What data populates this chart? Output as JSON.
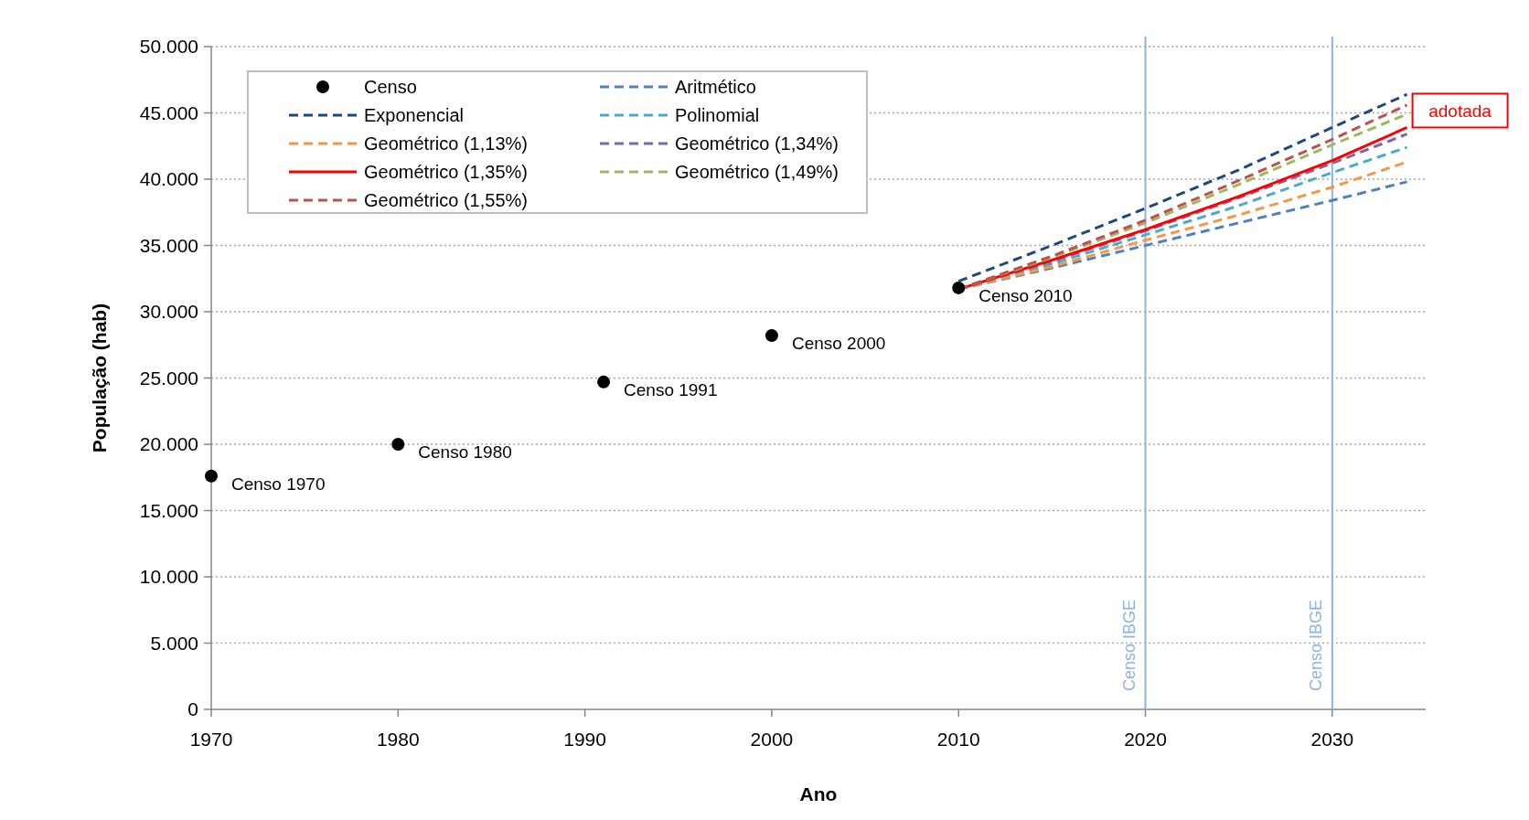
{
  "chart_data": {
    "type": "line",
    "xlabel": "Ano",
    "ylabel": "População (hab)",
    "xlim": [
      1970,
      2035
    ],
    "xticks": [
      1970,
      1980,
      1990,
      2000,
      2010,
      2020,
      2030
    ],
    "ylim": [
      0,
      50000
    ],
    "yticks": [
      {
        "value": 0,
        "label": "0"
      },
      {
        "value": 5000,
        "label": "5.000"
      },
      {
        "value": 10000,
        "label": "10.000"
      },
      {
        "value": 15000,
        "label": "15.000"
      },
      {
        "value": 20000,
        "label": "20.000"
      },
      {
        "value": 25000,
        "label": "25.000"
      },
      {
        "value": 30000,
        "label": "30.000"
      },
      {
        "value": 35000,
        "label": "35.000"
      },
      {
        "value": 40000,
        "label": "40.000"
      },
      {
        "value": 45000,
        "label": "45.000"
      },
      {
        "value": 50000,
        "label": "50.000"
      }
    ],
    "grid": "y",
    "legend": "top left",
    "series": [
      {
        "name": "Censo",
        "type": "scatter",
        "marker": "circle",
        "color": "#000000",
        "x": [
          1970,
          1980,
          1991,
          2000,
          2010
        ],
        "values": [
          17600,
          20000,
          24700,
          28200,
          31800
        ]
      },
      {
        "name": "Aritmético",
        "type": "line",
        "line_style": "dashed",
        "marker": "none",
        "color": "#4f81bd",
        "x": [
          2010,
          2015,
          2020,
          2025,
          2030,
          2034
        ],
        "values": [
          31700,
          33300,
          35000,
          36700,
          38400,
          39800
        ]
      },
      {
        "name": "Exponencial",
        "type": "line",
        "line_style": "dashed",
        "marker": "none",
        "color": "#1f497d",
        "x": [
          2010,
          2015,
          2020,
          2025,
          2030,
          2034
        ],
        "values": [
          32300,
          35000,
          37800,
          40700,
          43900,
          46400
        ]
      },
      {
        "name": "Polinomial",
        "type": "line",
        "line_style": "dashed",
        "marker": "none",
        "color": "#4bacc6",
        "x": [
          2010,
          2015,
          2020,
          2025,
          2030,
          2034
        ],
        "values": [
          31700,
          33600,
          35800,
          38000,
          40500,
          42400
        ]
      },
      {
        "name": "Geométrico (1,13%)",
        "type": "line",
        "line_style": "dashed",
        "marker": "none",
        "color": "#f79646",
        "x": [
          2010,
          2015,
          2020,
          2025,
          2030,
          2034
        ],
        "values": [
          31700,
          33400,
          35400,
          37300,
          39400,
          41300
        ]
      },
      {
        "name": "Geométrico (1,34%)",
        "type": "line",
        "line_style": "dashed",
        "marker": "none",
        "color": "#8064a2",
        "x": [
          2010,
          2015,
          2020,
          2025,
          2030,
          2034
        ],
        "values": [
          31700,
          33800,
          36100,
          38600,
          41200,
          43400
        ]
      },
      {
        "name": "Geométrico (1,35%)",
        "type": "line",
        "line_style": "solid",
        "marker": "none",
        "color": "#ff0000",
        "x": [
          2010,
          2015,
          2020,
          2025,
          2030,
          2034
        ],
        "values": [
          31700,
          33900,
          36200,
          38700,
          41400,
          43900
        ]
      },
      {
        "name": "Geométrico (1,49%)",
        "type": "line",
        "line_style": "dashed",
        "marker": "none",
        "color": "#9bbb59",
        "x": [
          2010,
          2015,
          2020,
          2025,
          2030,
          2034
        ],
        "values": [
          31700,
          34100,
          36700,
          39600,
          42600,
          44900
        ]
      },
      {
        "name": "Geométrico (1,55%)",
        "type": "line",
        "line_style": "dashed",
        "marker": "none",
        "color": "#c0504d",
        "x": [
          2010,
          2015,
          2020,
          2025,
          2030,
          2034
        ],
        "values": [
          31700,
          34200,
          36900,
          39900,
          43000,
          45600
        ]
      }
    ],
    "ref_lines": [
      {
        "axis": "x",
        "value": 2020,
        "label": "Censo IBGE",
        "color": "#8db3e2"
      },
      {
        "axis": "x",
        "value": 2030,
        "label": "Censo IBGE",
        "color": "#8db3e2"
      }
    ],
    "annotations": [
      {
        "text": "Censo 1970",
        "x": 1970,
        "y": 17600
      },
      {
        "text": "Censo 1980",
        "x": 1980,
        "y": 20000
      },
      {
        "text": "Censo 1991",
        "x": 1991,
        "y": 24700
      },
      {
        "text": "Censo 2000",
        "x": 2000,
        "y": 28200
      },
      {
        "text": "Censo 2010",
        "x": 2010,
        "y": 31800
      },
      {
        "text": "adotada",
        "x": 2034,
        "y": 43900
      }
    ]
  }
}
